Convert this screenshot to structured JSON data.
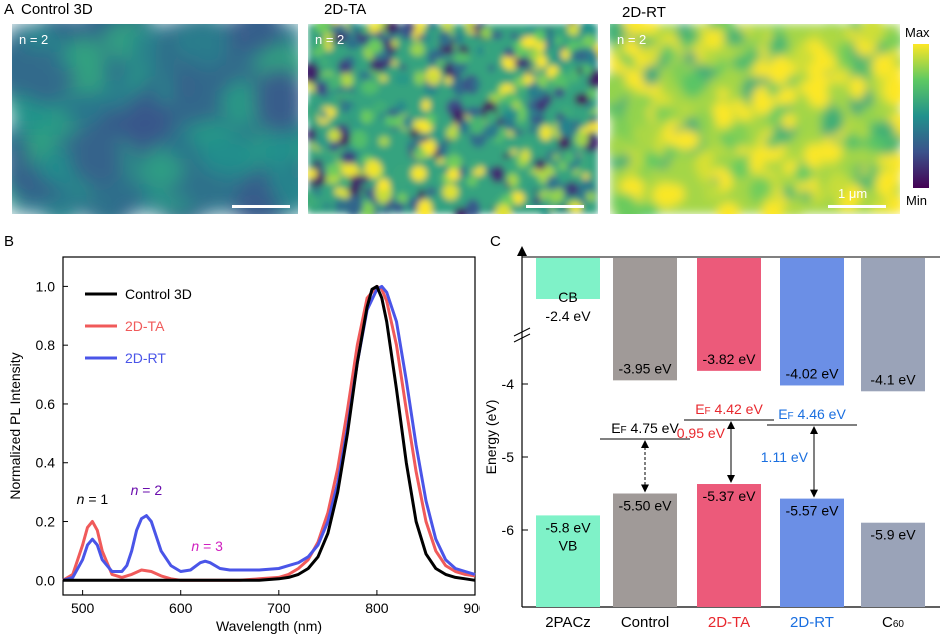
{
  "panel_a": {
    "letter": "A",
    "maps": [
      {
        "title": "Control 3D",
        "n_label": "n = 2",
        "level": 0.42,
        "spread": 0.16
      },
      {
        "title": "2D-TA",
        "n_label": "n = 2",
        "level": 0.58,
        "spread": 0.55
      },
      {
        "title": "2D-RT",
        "n_label": "n = 2",
        "level": 0.86,
        "spread": 0.28
      }
    ],
    "scalebar_label": "1 μm",
    "colorbar": {
      "max_label": "Max",
      "min_label": "Min"
    },
    "colors": {
      "min": "#440154",
      "c1": "#3b528b",
      "c2": "#21918c",
      "c3": "#5ec962",
      "max": "#fde725"
    }
  },
  "chart_data": [
    {
      "panel": "B",
      "type": "line",
      "xlabel": "Wavelength (nm)",
      "ylabel": "Normalized PL Intensity",
      "xlim": [
        480,
        900
      ],
      "ylim": [
        -0.05,
        1.1
      ],
      "xticks": [
        500,
        600,
        700,
        800,
        900
      ],
      "yticks": [
        0.0,
        0.2,
        0.4,
        0.6,
        0.8,
        1.0
      ],
      "grid": false,
      "legend_position": "top-left",
      "series": [
        {
          "name": "Control 3D",
          "color": "#000000",
          "x": [
            480,
            500,
            520,
            540,
            560,
            580,
            600,
            620,
            640,
            660,
            680,
            700,
            710,
            720,
            730,
            740,
            750,
            760,
            770,
            780,
            790,
            795,
            800,
            805,
            810,
            820,
            830,
            840,
            850,
            860,
            870,
            880,
            890,
            900
          ],
          "y": [
            0.0,
            0.0,
            0.0,
            0.0,
            0.0,
            0.0,
            0.0,
            0.0,
            0.0,
            0.0,
            0.0,
            0.005,
            0.01,
            0.02,
            0.04,
            0.08,
            0.16,
            0.3,
            0.5,
            0.74,
            0.93,
            0.99,
            1.0,
            0.96,
            0.88,
            0.65,
            0.4,
            0.2,
            0.09,
            0.04,
            0.02,
            0.01,
            0.005,
            0.0
          ]
        },
        {
          "name": "2D-TA",
          "color": "#f05a5a",
          "x": [
            480,
            490,
            500,
            505,
            510,
            515,
            520,
            530,
            540,
            550,
            560,
            570,
            580,
            590,
            600,
            620,
            640,
            660,
            680,
            700,
            710,
            720,
            730,
            740,
            750,
            760,
            770,
            780,
            790,
            800,
            805,
            810,
            820,
            830,
            840,
            850,
            860,
            870,
            880,
            890,
            900
          ],
          "y": [
            0.0,
            0.02,
            0.12,
            0.18,
            0.2,
            0.17,
            0.1,
            0.02,
            0.01,
            0.02,
            0.035,
            0.03,
            0.015,
            0.005,
            0.0,
            0.0,
            0.0,
            0.0,
            0.005,
            0.01,
            0.02,
            0.04,
            0.07,
            0.13,
            0.23,
            0.38,
            0.58,
            0.8,
            0.96,
            1.0,
            0.99,
            0.95,
            0.8,
            0.58,
            0.37,
            0.2,
            0.1,
            0.05,
            0.03,
            0.02,
            0.015
          ]
        },
        {
          "name": "2D-RT",
          "color": "#4a55e8",
          "x": [
            480,
            490,
            500,
            505,
            510,
            515,
            520,
            530,
            540,
            545,
            550,
            555,
            560,
            565,
            570,
            575,
            580,
            590,
            600,
            610,
            620,
            625,
            630,
            640,
            650,
            660,
            680,
            700,
            710,
            720,
            730,
            740,
            750,
            760,
            770,
            780,
            790,
            800,
            805,
            810,
            820,
            830,
            840,
            850,
            860,
            870,
            880,
            890,
            900
          ],
          "y": [
            0.0,
            0.01,
            0.07,
            0.12,
            0.14,
            0.12,
            0.07,
            0.03,
            0.03,
            0.05,
            0.1,
            0.17,
            0.21,
            0.22,
            0.2,
            0.15,
            0.1,
            0.05,
            0.03,
            0.035,
            0.06,
            0.065,
            0.06,
            0.04,
            0.035,
            0.035,
            0.035,
            0.04,
            0.05,
            0.06,
            0.08,
            0.12,
            0.2,
            0.33,
            0.52,
            0.74,
            0.92,
            0.99,
            1.0,
            0.98,
            0.88,
            0.68,
            0.46,
            0.27,
            0.14,
            0.07,
            0.04,
            0.03,
            0.02
          ]
        }
      ],
      "annotations": [
        {
          "text": "n = 1",
          "italic_n": true,
          "x": 510,
          "y": 0.26,
          "color": "#000000"
        },
        {
          "text": "n = 2",
          "italic_n": true,
          "x": 565,
          "y": 0.29,
          "color": "#6a0dad"
        },
        {
          "text": "n = 3",
          "italic_n": true,
          "x": 627,
          "y": 0.1,
          "color": "#d020c0"
        }
      ]
    },
    {
      "panel": "C",
      "type": "bar",
      "ylabel": "Energy (eV)",
      "yticks": [
        -4,
        -5,
        -6
      ],
      "ylim": [
        -7.0,
        -2.0
      ],
      "axis_break": true,
      "categories": [
        "2PACz",
        "Control",
        "2D-TA",
        "2D-RT",
        "C60"
      ],
      "category_colors": [
        "#000000",
        "#000000",
        "#e8282e",
        "#1a6fe0",
        "#000000"
      ],
      "bars": [
        {
          "name": "2PACz",
          "color": "#7ff2c8",
          "top_value": -2.4,
          "top_label": "-2.4 eV",
          "top_extra": "CB",
          "bottom_value": -5.8,
          "bottom_label": "-5.8 eV",
          "bottom_extra": "VB"
        },
        {
          "name": "Control",
          "color": "#a09a98",
          "top_value": -3.95,
          "top_label": "-3.95 eV",
          "bottom_value": -5.5,
          "bottom_label": "-5.50 eV",
          "fermi_value": -4.75,
          "fermi_label": "EF 4.75 eV",
          "fermi_color": "#000000",
          "gap_label": "",
          "gap_color": "#000000"
        },
        {
          "name": "2D-TA",
          "color": "#ec5a7a",
          "top_value": -3.82,
          "top_label": "-3.82 eV",
          "bottom_value": -5.37,
          "bottom_label": "-5.37 eV",
          "fermi_value": -4.42,
          "fermi_label": "EF 4.42 eV",
          "fermi_color": "#e8282e",
          "gap_label": "0.95 eV",
          "gap_color": "#e8282e"
        },
        {
          "name": "2D-RT",
          "color": "#6b8fe6",
          "top_value": -4.02,
          "top_label": "-4.02 eV",
          "bottom_value": -5.57,
          "bottom_label": "-5.57 eV",
          "fermi_value": -4.46,
          "fermi_label": "EF 4.46 eV",
          "fermi_color": "#1a6fe0",
          "gap_label": "1.11 eV",
          "gap_color": "#1a6fe0"
        },
        {
          "name": "C60",
          "color": "#9aa3b8",
          "top_value": -4.1,
          "top_label": "-4.1 eV",
          "bottom_value": -5.9,
          "bottom_label": "-5.9 eV"
        }
      ]
    }
  ],
  "panel_b_letter": "B",
  "panel_c_letter": "C"
}
